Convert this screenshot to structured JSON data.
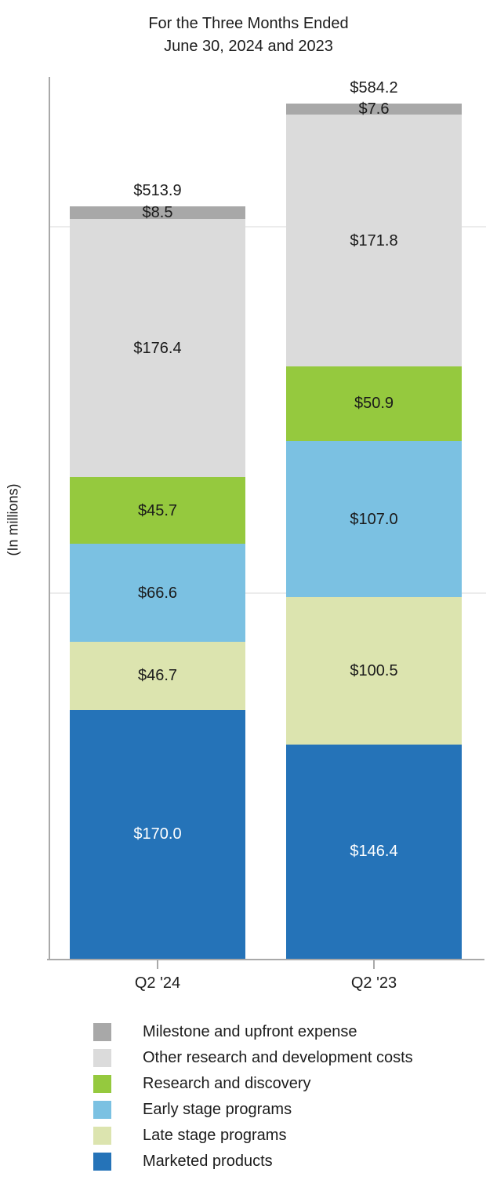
{
  "title": {
    "line1": "For the Three Months Ended",
    "line2": "June 30, 2024 and 2023"
  },
  "y_axis": {
    "label": "(In millions)"
  },
  "chart_data": {
    "type": "bar",
    "stacked": true,
    "title": "For the Three Months Ended June 30, 2024 and 2023",
    "ylabel": "(In millions)",
    "xlabel": "",
    "categories": [
      "Q2 '24",
      "Q2 '23"
    ],
    "series": [
      {
        "name": "Marketed products",
        "color": "#2573b8",
        "label_color": "#ffffff",
        "values": [
          170.0,
          146.4
        ],
        "labels": [
          "$170.0",
          "$146.4"
        ]
      },
      {
        "name": "Late stage programs",
        "color": "#dce4af",
        "label_color": "#1a1a1a",
        "values": [
          46.7,
          100.5
        ],
        "labels": [
          "$46.7",
          "$100.5"
        ]
      },
      {
        "name": "Early stage programs",
        "color": "#7bc1e2",
        "label_color": "#1a1a1a",
        "values": [
          66.6,
          107.0
        ],
        "labels": [
          "$66.6",
          "$107.0"
        ]
      },
      {
        "name": "Research and discovery",
        "color": "#95c93e",
        "label_color": "#1a1a1a",
        "values": [
          45.7,
          50.9
        ],
        "labels": [
          "$45.7",
          "$50.9"
        ]
      },
      {
        "name": "Other research and development costs",
        "color": "#dbdbdb",
        "label_color": "#1a1a1a",
        "values": [
          176.4,
          171.8
        ],
        "labels": [
          "$176.4",
          "$171.8"
        ]
      },
      {
        "name": "Milestone and upfront expense",
        "color": "#a8a8a8",
        "label_color": "#1a1a1a",
        "values": [
          8.5,
          7.6
        ],
        "labels": [
          "$8.5",
          "$7.6"
        ]
      }
    ],
    "totals": {
      "values": [
        513.9,
        584.2
      ],
      "labels": [
        "$513.9",
        "$584.2"
      ]
    },
    "ylim": [
      0,
      600
    ],
    "gridline_values": [
      250,
      500
    ],
    "grid": true,
    "legend_position": "bottom",
    "legend_order_top_to_bottom": [
      "Milestone and upfront expense",
      "Other research and development costs",
      "Research and discovery",
      "Early stage programs",
      "Late stage programs",
      "Marketed products"
    ]
  },
  "colors": {
    "axis": "#a9a9a9",
    "gridline": "#ececec",
    "text": "#1c1c1c"
  }
}
